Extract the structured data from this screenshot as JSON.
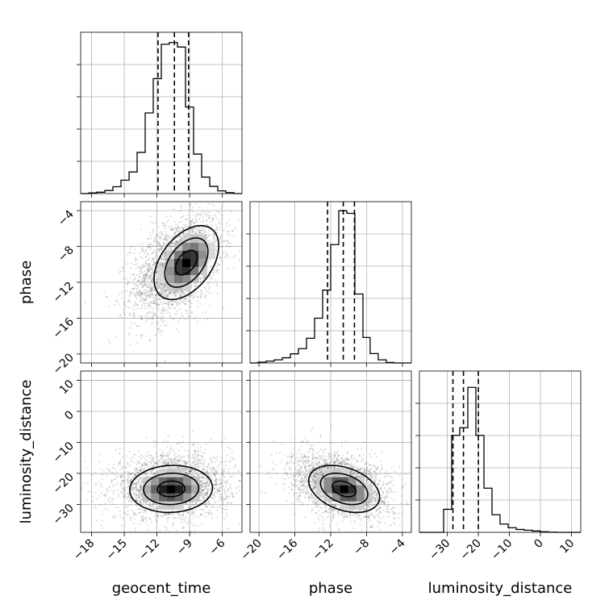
{
  "chart_data": {
    "type": "corner",
    "parameters": [
      "geocent_time",
      "phase",
      "luminosity_distance"
    ],
    "ranges": {
      "geocent_time": [
        -19.0,
        -4.2
      ],
      "phase": [
        -21.0,
        -3.0
      ],
      "luminosity_distance": [
        -39.0,
        13.0
      ]
    },
    "ticks": {
      "geocent_time": [
        -18,
        -15,
        -12,
        -9,
        -6
      ],
      "phase": [
        -20,
        -16,
        -12,
        -8,
        -4
      ],
      "luminosity_distance": [
        -30,
        -20,
        -10,
        0,
        10
      ]
    },
    "grid": true,
    "marginals": [
      {
        "parameter": "geocent_time",
        "bin_edges": [
          -19.0,
          -18.26,
          -17.52,
          -16.78,
          -16.04,
          -15.3,
          -14.56,
          -13.82,
          -13.08,
          -12.34,
          -11.6,
          -10.86,
          -10.12,
          -9.38,
          -8.64,
          -7.9,
          -7.16,
          -6.42,
          -5.68,
          -4.94,
          -4.2
        ],
        "counts": [
          0,
          2,
          4,
          9,
          20,
          39,
          63,
          120,
          235,
          335,
          435,
          440,
          427,
          252,
          115,
          48,
          21,
          8,
          3,
          0
        ],
        "quantiles": [
          -11.9,
          -10.4,
          -9.1
        ],
        "ylim": [
          0,
          470
        ]
      },
      {
        "parameter": "phase",
        "bin_edges": [
          -21.0,
          -20.1,
          -19.2,
          -18.3,
          -17.4,
          -16.5,
          -15.6,
          -14.7,
          -13.8,
          -12.9,
          -12.0,
          -11.1,
          -10.2,
          -9.3,
          -8.4,
          -7.6,
          -6.7,
          -5.8,
          -4.9,
          -4.0,
          -3.0
        ],
        "counts": [
          0,
          3,
          7,
          12,
          20,
          35,
          55,
          95,
          172,
          280,
          455,
          585,
          575,
          265,
          98,
          36,
          12,
          2,
          0,
          0
        ],
        "quantiles": [
          -12.35,
          -10.6,
          -9.35
        ],
        "ylim": [
          0,
          620
        ]
      },
      {
        "parameter": "luminosity_distance",
        "bin_edges": [
          -39.0,
          -36.4,
          -33.8,
          -31.2,
          -28.6,
          -26.0,
          -23.4,
          -20.8,
          -18.2,
          -15.6,
          -13.0,
          -10.4,
          -7.8,
          -5.2,
          -2.6,
          0.0,
          2.6,
          5.2,
          7.8,
          10.4,
          13.0
        ],
        "counts": [
          0,
          0,
          0,
          120,
          505,
          545,
          755,
          505,
          230,
          92,
          43,
          24,
          15,
          11,
          7,
          3,
          1,
          0,
          0,
          0
        ],
        "quantiles": [
          -28.2,
          -24.8,
          -20.0
        ],
        "ylim": [
          0,
          840
        ]
      }
    ],
    "joint_panels": [
      {
        "x": "geocent_time",
        "y": "phase",
        "mode": [
          -9.3,
          -9.8
        ],
        "center": [
          -10.2,
          -10.2
        ],
        "spread": [
          1.8,
          2.5
        ],
        "rho": 0.45,
        "contour_levels_sigma": [
          0.5,
          1.0,
          1.5
        ],
        "n_points": 2600
      },
      {
        "x": "geocent_time",
        "y": "luminosity_distance",
        "mode": [
          -10.7,
          -25.0
        ],
        "center": [
          -10.6,
          -24.0
        ],
        "spread": [
          2.3,
          4.6
        ],
        "rho": 0.05,
        "contour_levels_sigma": [
          0.5,
          1.0,
          1.5
        ],
        "n_points": 2600
      },
      {
        "x": "phase",
        "y": "luminosity_distance",
        "mode": [
          -10.5,
          -25.0
        ],
        "center": [
          -10.8,
          -24.0
        ],
        "spread": [
          2.4,
          4.6
        ],
        "rho": -0.35,
        "contour_levels_sigma": [
          0.5,
          1.0,
          1.5
        ],
        "n_points": 2600
      }
    ],
    "xlabels": [
      "geocent_time",
      "phase",
      "luminosity_distance"
    ],
    "ylabels": [
      "",
      "phase",
      "luminosity_distance"
    ]
  }
}
